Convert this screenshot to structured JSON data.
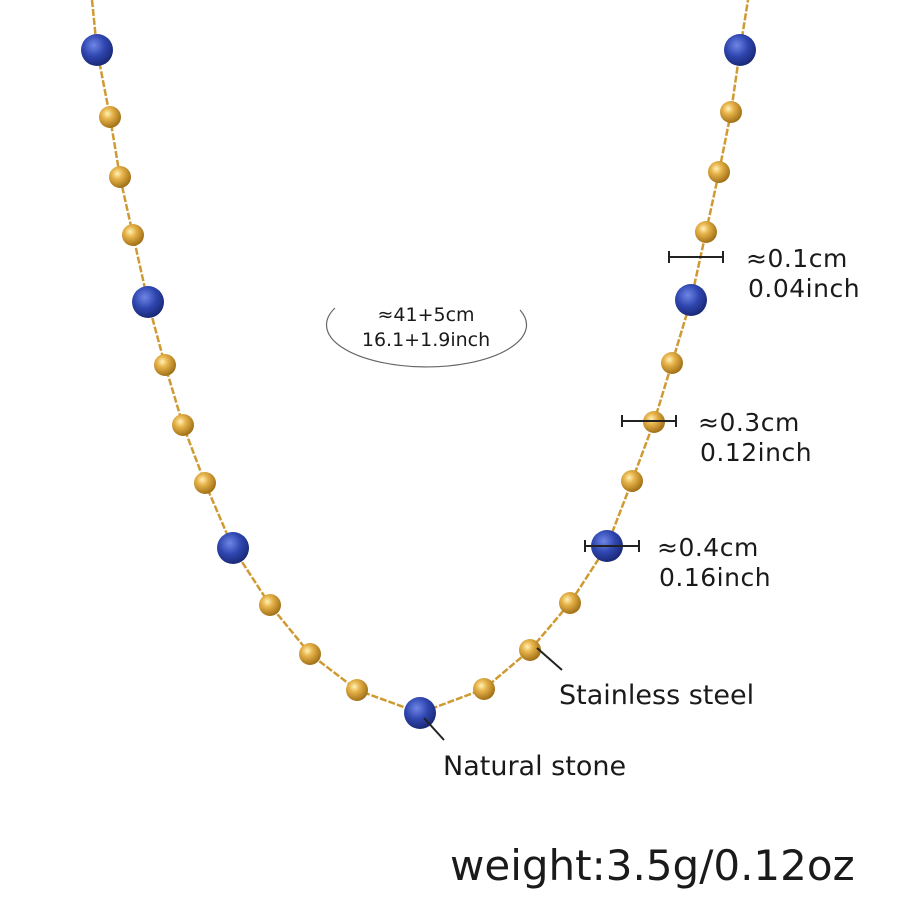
{
  "length": {
    "cm": "≈41+5cm",
    "inch": "16.1+1.9inch"
  },
  "dimensions": [
    {
      "cm": "≈0.1cm",
      "inch": "0.04inch"
    },
    {
      "cm": "≈0.3cm",
      "inch": "0.12inch"
    },
    {
      "cm": "≈0.4cm",
      "inch": "0.16inch"
    }
  ],
  "materials": {
    "steel": "Stainless steel",
    "stone": "Natural stone"
  },
  "weight": "weight:3.5g/0.12oz",
  "colors": {
    "gold": "#d9a23a",
    "stone": "#2f46b0",
    "chain": "#cf9a32"
  }
}
